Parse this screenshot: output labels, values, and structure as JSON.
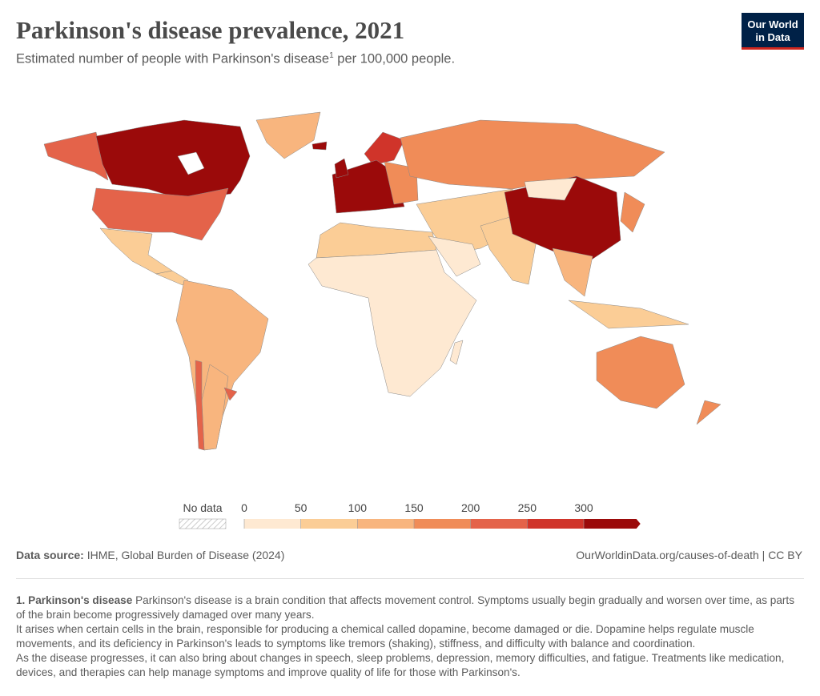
{
  "header": {
    "title": "Parkinson's disease prevalence, 2021",
    "subtitle": {
      "before": "Estimated number of people with Parkinson's disease",
      "sup": "1",
      "after": " per 100,000 people."
    },
    "logo": [
      "Our World",
      "in Data"
    ]
  },
  "legend": {
    "no_data": "No data",
    "ticks": [
      0,
      50,
      100,
      150,
      200,
      250,
      300
    ],
    "colors": [
      "#fee9d2",
      "#fbcd96",
      "#f8b57e",
      "#f08c58",
      "#e4634a",
      "#d0342a",
      "#9b0a0a"
    ]
  },
  "footer": {
    "source_label": "Data source:",
    "source": "IHME, Global Burden of Disease (2024)",
    "url": "OurWorldinData.org/causes-of-death | CC BY"
  },
  "footnote": {
    "number": "1.",
    "term": "Parkinson's disease",
    "lines": [
      "Parkinson's disease is a brain condition that affects movement control. Symptoms usually begin gradually and worsen over time, as parts of the brain become progressively damaged over many years.",
      "It arises when certain cells in the brain, responsible for producing a chemical called dopamine, become damaged or die. Dopamine helps regulate muscle movements, and its deficiency in Parkinson's leads to symptoms like tremors (shaking), stiffness, and difficulty with balance and coordination.",
      "As the disease progresses, it can also bring about changes in speech, sleep problems, depression, memory difficulties, and fatigue. Treatments like medication, devices, and therapies can help manage symptoms and improve quality of life for those with Parkinson's."
    ]
  }
}
